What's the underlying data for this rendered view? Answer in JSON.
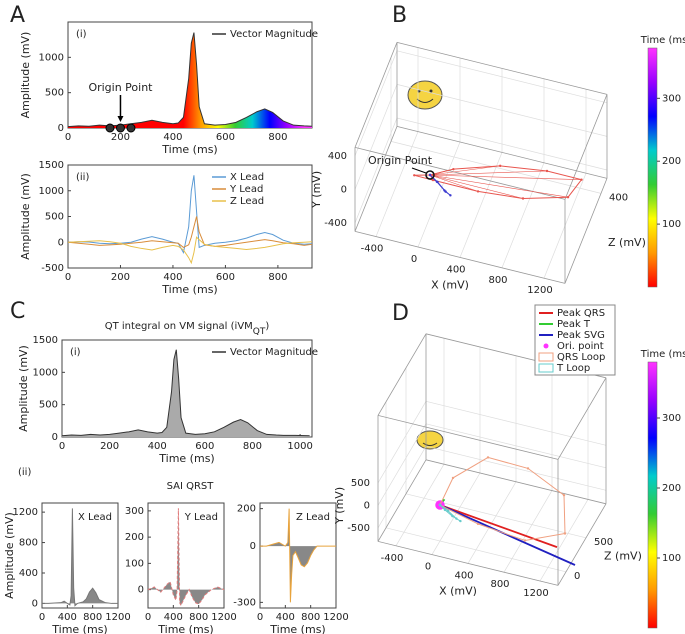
{
  "chart_data": [
    {
      "type": "line",
      "label": "A",
      "subtitle": "(i)",
      "xlabel": "Time (ms)",
      "ylabel": "Amplitude (mV)",
      "x": [
        0,
        40,
        80,
        120,
        160,
        200,
        240,
        280,
        320,
        360,
        400,
        420,
        440,
        460,
        470,
        480,
        490,
        500,
        520,
        560,
        600,
        640,
        680,
        720,
        750,
        780,
        820,
        860,
        900,
        930
      ],
      "series": [
        {
          "name": "Vector Magnitude",
          "color": "#333333",
          "values": [
            20,
            30,
            25,
            40,
            30,
            40,
            60,
            80,
            110,
            80,
            60,
            70,
            150,
            700,
            1200,
            1350,
            900,
            300,
            60,
            40,
            50,
            80,
            150,
            230,
            270,
            220,
            100,
            40,
            30,
            25
          ]
        }
      ],
      "xlim": [
        0,
        930
      ],
      "ylim": [
        0,
        1500
      ],
      "xticks": [
        0,
        200,
        400,
        600,
        800
      ],
      "yticks": [
        0,
        500,
        1000
      ],
      "fill_colors": [
        "#ff0000",
        "#ff9900",
        "#ffff00",
        "#33cc33",
        "#00cccc",
        "#0000ff",
        "#9900ff",
        "#ff33ff"
      ],
      "fill_range": [
        440,
        900
      ],
      "origin_points": {
        "x": [
          160,
          200,
          240
        ],
        "values": [
          0,
          0,
          0
        ],
        "color": "#333333"
      },
      "annotation": "Origin Point",
      "legend": "upper right"
    },
    {
      "type": "line",
      "subtitle": "(ii)",
      "xlabel": "Time (ms)",
      "ylabel": "Amplitude (mV)",
      "x": [
        0,
        40,
        80,
        120,
        160,
        200,
        240,
        280,
        320,
        360,
        400,
        420,
        440,
        460,
        470,
        480,
        490,
        500,
        520,
        560,
        600,
        640,
        680,
        720,
        750,
        780,
        820,
        860,
        900,
        930
      ],
      "series": [
        {
          "name": "X Lead",
          "color": "#5b9bd5",
          "values": [
            0,
            10,
            5,
            -20,
            -30,
            -20,
            0,
            60,
            110,
            60,
            0,
            -20,
            -200,
            300,
            1000,
            1300,
            600,
            -100,
            -60,
            -20,
            0,
            30,
            80,
            150,
            190,
            150,
            40,
            -20,
            -40,
            -30
          ]
        },
        {
          "name": "Y Lead",
          "color": "#d98c3a",
          "values": [
            0,
            -20,
            -40,
            -60,
            -50,
            -40,
            -20,
            0,
            30,
            10,
            -10,
            -20,
            -100,
            -50,
            100,
            300,
            500,
            200,
            -50,
            -80,
            -60,
            -30,
            0,
            30,
            50,
            30,
            -10,
            -30,
            -60,
            -40
          ]
        },
        {
          "name": "Z Lead",
          "color": "#e8c04a",
          "values": [
            0,
            10,
            20,
            30,
            10,
            -20,
            -80,
            -120,
            -150,
            -100,
            -60,
            -80,
            -150,
            -300,
            -400,
            -200,
            100,
            50,
            -40,
            -80,
            -100,
            -120,
            -140,
            -120,
            -100,
            -70,
            -30,
            -10,
            0,
            10
          ]
        }
      ],
      "xlim": [
        0,
        930
      ],
      "ylim": [
        -500,
        1500
      ],
      "xticks": [
        0,
        200,
        400,
        600,
        800
      ],
      "yticks": [
        -500,
        0,
        500,
        1000,
        1500
      ],
      "legend": "upper right"
    },
    {
      "type": "scatter3d",
      "label": "B",
      "xlabel": "X (mV)",
      "ylabel": "Y (mV)",
      "zlabel": "Z (mV)",
      "xlim": [
        -600,
        1400
      ],
      "ylim": [
        -500,
        500
      ],
      "zlim": [
        -200,
        500
      ],
      "xticks": [
        -400,
        0,
        400,
        800,
        1200
      ],
      "yticks": [
        -400,
        0,
        400
      ],
      "zticks": [
        400
      ],
      "series": [
        {
          "style": "loop",
          "color": "#e8554e",
          "spokes": true,
          "x": [
            0,
            -150,
            0,
            400,
            800,
            1200,
            1300,
            1000,
            600,
            200,
            0
          ],
          "y": [
            0,
            -50,
            -150,
            -250,
            -300,
            -250,
            -100,
            0,
            80,
            60,
            0
          ],
          "z": [
            0,
            0,
            50,
            100,
            150,
            200,
            250,
            200,
            120,
            40,
            0
          ]
        },
        {
          "style": "loop",
          "color": "#3a3ad0",
          "x": [
            0,
            60,
            120,
            160,
            120,
            60,
            0
          ],
          "y": [
            0,
            -80,
            -200,
            -300,
            -250,
            -100,
            0
          ],
          "z": [
            0,
            10,
            30,
            60,
            50,
            20,
            0
          ]
        },
        {
          "style": "point",
          "color": "#111111",
          "x": [
            0
          ],
          "y": [
            0
          ],
          "z": [
            0
          ]
        }
      ],
      "annotation": "Origin Point",
      "colorbar": {
        "title": "Time (ms)",
        "lim": [
          0,
          380
        ],
        "ticks": [
          100,
          200,
          300
        ],
        "colors": [
          "#ff0000",
          "#ff9900",
          "#ffff00",
          "#33cc33",
          "#00cccc",
          "#0000ff",
          "#9900ff",
          "#ff33ff"
        ]
      }
    },
    {
      "type": "line",
      "label": "C",
      "title": [
        "QT integral on VM signal (iVM",
        "QT",
        ")"
      ],
      "subtitle": "(i)",
      "xlabel": "Time (ms)",
      "ylabel": "Amplitude (mV)",
      "x": [
        0,
        40,
        80,
        120,
        160,
        200,
        240,
        280,
        320,
        360,
        400,
        420,
        440,
        460,
        470,
        480,
        490,
        500,
        520,
        560,
        600,
        640,
        680,
        720,
        750,
        780,
        820,
        860,
        900,
        930,
        980,
        1040
      ],
      "series": [
        {
          "name": "Vector Magnitude",
          "color": "#333333",
          "fill": "#aaaaaa",
          "values": [
            20,
            30,
            25,
            40,
            30,
            40,
            60,
            80,
            110,
            80,
            60,
            70,
            150,
            700,
            1200,
            1350,
            900,
            300,
            60,
            40,
            50,
            80,
            150,
            230,
            270,
            220,
            100,
            40,
            30,
            25,
            25,
            20
          ]
        }
      ],
      "xlim": [
        0,
        1050
      ],
      "ylim": [
        0,
        1500
      ],
      "xticks": [
        0,
        200,
        400,
        600,
        800,
        1000
      ],
      "yticks": [
        0,
        500,
        1000,
        1500
      ],
      "legend": "upper right"
    },
    {
      "type": "line",
      "subtitle": "(ii)",
      "group_title": "SAI QRST",
      "title": "X Lead",
      "xlabel": "Time (ms)",
      "ylabel": "Amplitude (mV)",
      "x": [
        0,
        100,
        200,
        300,
        350,
        400,
        440,
        460,
        480,
        500,
        520,
        560,
        600,
        650,
        700,
        750,
        800,
        850,
        900,
        1000,
        1100,
        1200
      ],
      "series": [
        {
          "color": "#777777",
          "fill": "#888888",
          "values": [
            0,
            0,
            5,
            10,
            30,
            0,
            -20,
            100,
            1250,
            200,
            -30,
            0,
            10,
            20,
            60,
            150,
            200,
            140,
            50,
            10,
            0,
            0
          ]
        }
      ],
      "xlim": [
        0,
        1200
      ],
      "ylim": [
        -60,
        1320
      ],
      "xticks": [
        0,
        400,
        800,
        1200
      ],
      "yticks": [
        0,
        400,
        800,
        1200
      ]
    },
    {
      "type": "line",
      "title": "Y Lead",
      "xlabel": "Time (ms)",
      "x": [
        0,
        100,
        200,
        300,
        350,
        400,
        440,
        460,
        480,
        500,
        520,
        560,
        600,
        650,
        700,
        750,
        800,
        850,
        900,
        1000,
        1100,
        1200
      ],
      "series": [
        {
          "color": "#e07a7a",
          "fill": "#888888",
          "dash": true,
          "values": [
            0,
            10,
            -10,
            20,
            30,
            -20,
            -40,
            0,
            310,
            -50,
            -60,
            -40,
            -20,
            0,
            -30,
            -50,
            -55,
            -40,
            -20,
            0,
            10,
            0
          ]
        }
      ],
      "xlim": [
        0,
        1200
      ],
      "ylim": [
        -70,
        330
      ],
      "xticks": [
        0,
        400,
        800,
        1200
      ],
      "yticks": [
        0,
        100,
        200,
        300
      ]
    },
    {
      "type": "line",
      "title": "Z Lead",
      "xlabel": "Time (ms)",
      "x": [
        0,
        100,
        200,
        300,
        350,
        400,
        440,
        460,
        480,
        500,
        520,
        560,
        600,
        650,
        700,
        750,
        800,
        850,
        900,
        1000,
        1100,
        1200
      ],
      "series": [
        {
          "color": "#e8a33c",
          "fill": "#888888",
          "values": [
            0,
            0,
            10,
            20,
            10,
            0,
            20,
            200,
            -300,
            -150,
            -50,
            -30,
            -60,
            -100,
            -110,
            -90,
            -50,
            -20,
            0,
            0,
            0,
            0
          ]
        }
      ],
      "xlim": [
        0,
        1200
      ],
      "ylim": [
        -330,
        230
      ],
      "xticks": [
        0,
        400,
        800,
        1200
      ],
      "yticks": [
        -300,
        0,
        200
      ]
    },
    {
      "type": "scatter3d",
      "label": "D",
      "xlabel": "X (mV)",
      "ylabel": "Y (mV)",
      "zlabel": "Z (mV)",
      "xlim": [
        -600,
        1400
      ],
      "ylim": [
        -800,
        2000
      ],
      "zlim": [
        -200,
        1000
      ],
      "xticks": [
        -400,
        0,
        400,
        800,
        1200
      ],
      "yticks": [
        -500,
        0,
        500
      ],
      "zticks": [
        0,
        500
      ],
      "series": [
        {
          "name": "Peak QRS",
          "style": "line",
          "color": "#e02020",
          "x": [
            0,
            1300
          ],
          "y": [
            0,
            -300
          ],
          "z": [
            0,
            0
          ]
        },
        {
          "name": "Peak T",
          "style": "line",
          "color": "#33cc33",
          "x": [
            0,
            50
          ],
          "y": [
            0,
            150
          ],
          "z": [
            0,
            0
          ]
        },
        {
          "name": "Peak SVG",
          "style": "line",
          "color": "#2020c0",
          "x": [
            0,
            1500
          ],
          "y": [
            0,
            -600
          ],
          "z": [
            0,
            0
          ]
        },
        {
          "name": "Ori. point",
          "style": "point",
          "color": "#ff33ff",
          "x": [
            0
          ],
          "y": [
            0
          ],
          "z": [
            0
          ]
        },
        {
          "name": "QRS Loop",
          "style": "loop",
          "color": "#f0a080",
          "x": [
            0,
            100,
            400,
            800,
            1200,
            1300,
            900,
            400,
            0
          ],
          "y": [
            0,
            500,
            800,
            600,
            200,
            -300,
            -500,
            -300,
            0
          ],
          "z": [
            0,
            100,
            300,
            400,
            400,
            200,
            100,
            50,
            0
          ]
        },
        {
          "name": "T Loop",
          "style": "loop",
          "color": "#66cccc",
          "x": [
            0,
            50,
            120,
            200,
            160,
            80,
            0
          ],
          "y": [
            0,
            -100,
            -250,
            -350,
            -300,
            -120,
            0
          ],
          "z": [
            0,
            10,
            40,
            60,
            50,
            20,
            0
          ]
        }
      ],
      "legend": "upper right",
      "colorbar": {
        "title": "Time (ms)",
        "lim": [
          0,
          380
        ],
        "ticks": [
          100,
          200,
          300
        ],
        "colors": [
          "#ff0000",
          "#ff9900",
          "#ffff00",
          "#33cc33",
          "#00cccc",
          "#0000ff",
          "#9900ff",
          "#ff33ff"
        ]
      }
    }
  ]
}
